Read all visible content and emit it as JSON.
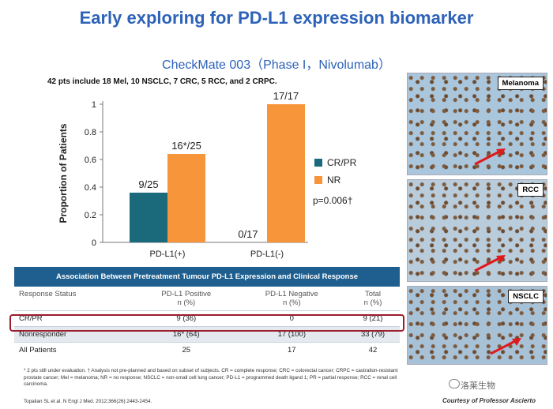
{
  "slide": {
    "title": "Early exploring for PD-L1 expression biomarker",
    "subtitle": "CheckMate 003（Phase I，Nivolumab）",
    "patients_note": "42 pts include 18 Mel, 10 NSCLC, 7 CRC, 5 RCC, and 2 CRPC."
  },
  "chart_data": {
    "type": "bar",
    "categories": [
      "PD-L1(+)",
      "PD-L1(-)"
    ],
    "series": [
      {
        "name": "CR/PR",
        "values": [
          0.36,
          0.0
        ],
        "labels": [
          "9/25",
          "0/17"
        ],
        "color": "#1a6a7c"
      },
      {
        "name": "NR",
        "values": [
          0.64,
          1.0
        ],
        "labels": [
          "16*/25",
          "17/17"
        ],
        "color": "#f7953a"
      }
    ],
    "ylabel": "Proportion of Patients",
    "yticks": [
      "0",
      "0.2",
      "0.4",
      "0.6",
      "0.8",
      "1"
    ],
    "ylim": [
      0,
      1
    ],
    "annotation": "p=0.006†",
    "legend": "right"
  },
  "table": {
    "caption": "Association Between Pretreatment Tumour PD-L1 Expression and Clinical Response",
    "headers": [
      [
        "Response Status"
      ],
      [
        "PD-L1 Positive",
        "n (%)"
      ],
      [
        "PD-L1 Negative",
        "n (%)"
      ],
      [
        "Total",
        "n (%)"
      ]
    ],
    "rows": [
      [
        "CR/PR",
        "9 (36)",
        "0",
        "9 (21)"
      ],
      [
        "Nonresponder",
        "16* (64)",
        "17 (100)",
        "33 (79)"
      ],
      [
        "All Patients",
        "25",
        "17",
        "42"
      ]
    ]
  },
  "footnote": "* 2 pts still under evaluation.  † Analysis not pre-planned and based on subset of subjects. CR = complete response; CRC = colorectal cancer; CRPC = castration-resistant prostate cancer; Mel = melanoma; NR = no response; NSCLC = non-small cell lung cancer; PD-L1 = programmed death ligand 1; PR = partial response; RCC = renal cell carcinoma.",
  "citation": "Topalian SL et al. N Engl J Med. 2012;366(26):2443-2454.",
  "panels": [
    {
      "label": "Melanoma",
      "bg": "#a9c6dc"
    },
    {
      "label": "RCC",
      "bg": "#b8ccdc"
    },
    {
      "label": "NSCLC",
      "bg": "#a7c1d7"
    }
  ],
  "courtesy": "Courtesy of Professor Ascierto",
  "watermark": "洛莱生物"
}
